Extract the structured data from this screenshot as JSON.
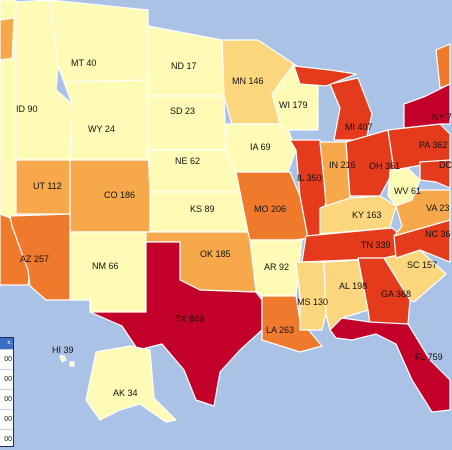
{
  "palette": {
    "water": "#aac2e6",
    "light": "#fdfbb5",
    "low": "#fcd67c",
    "mid": "#f6a84a",
    "high": "#f07a2c",
    "higher": "#e33b1b",
    "top": "#c2002a",
    "legend_header": "#3c70c4"
  },
  "states": [
    {
      "abbr": "MT",
      "value": 40,
      "label": "MT 40"
    },
    {
      "abbr": "ND",
      "value": 17,
      "label": "ND 17"
    },
    {
      "abbr": "MN",
      "value": 146,
      "label": "MN 146"
    },
    {
      "abbr": "ID",
      "value": 90,
      "label": "ID 90"
    },
    {
      "abbr": "SD",
      "value": 23,
      "label": "SD 23"
    },
    {
      "abbr": "WI",
      "value": 179,
      "label": "WI 179"
    },
    {
      "abbr": "MI",
      "value": 407,
      "label": "MI 407"
    },
    {
      "abbr": "NY",
      "label": "NY 7"
    },
    {
      "abbr": "WY",
      "value": 24,
      "label": "WY 24"
    },
    {
      "abbr": "PA",
      "value": 362,
      "label": "PA 362"
    },
    {
      "abbr": "IA",
      "value": 69,
      "label": "IA 69"
    },
    {
      "abbr": "IN",
      "value": 216,
      "label": "IN 216"
    },
    {
      "abbr": "OH",
      "value": 361,
      "label": "OH 361"
    },
    {
      "abbr": "DC",
      "label": "DC"
    },
    {
      "abbr": "NE",
      "value": 62,
      "label": "NE 62"
    },
    {
      "abbr": "IL",
      "value": 350,
      "label": "IL 350"
    },
    {
      "abbr": "UT",
      "value": 112,
      "label": "UT 112"
    },
    {
      "abbr": "CO",
      "value": 186,
      "label": "CO 186"
    },
    {
      "abbr": "WV",
      "value": 61,
      "label": "WV 61"
    },
    {
      "abbr": "KS",
      "value": 89,
      "label": "KS 89"
    },
    {
      "abbr": "MO",
      "value": 206,
      "label": "MO 206"
    },
    {
      "abbr": "KY",
      "value": 163,
      "label": "KY 163"
    },
    {
      "abbr": "VA",
      "label": "VA 23"
    },
    {
      "abbr": "NC",
      "label": "NC 36"
    },
    {
      "abbr": "TN",
      "value": 339,
      "label": "TN 339"
    },
    {
      "abbr": "AZ",
      "value": 257,
      "label": "AZ 257"
    },
    {
      "abbr": "NM",
      "value": 66,
      "label": "NM 66"
    },
    {
      "abbr": "OK",
      "value": 185,
      "label": "OK 185"
    },
    {
      "abbr": "AR",
      "value": 92,
      "label": "AR 92"
    },
    {
      "abbr": "SC",
      "value": 157,
      "label": "SC 157"
    },
    {
      "abbr": "AL",
      "value": 198,
      "label": "AL 198"
    },
    {
      "abbr": "TX",
      "value": 849,
      "label": "TX 849"
    },
    {
      "abbr": "MS",
      "value": 130,
      "label": "MS 130"
    },
    {
      "abbr": "GA",
      "value": 368,
      "label": "GA 368"
    },
    {
      "abbr": "LA",
      "value": 263,
      "label": "LA 263"
    },
    {
      "abbr": "HI",
      "value": 39,
      "label": "HI 39"
    },
    {
      "abbr": "FL",
      "value": 759,
      "label": "FL 759"
    },
    {
      "abbr": "AK",
      "value": 34,
      "label": "AK 34"
    }
  ],
  "legend": {
    "header": "x.",
    "rows": [
      "00",
      "00",
      "00",
      "00",
      "00"
    ]
  }
}
